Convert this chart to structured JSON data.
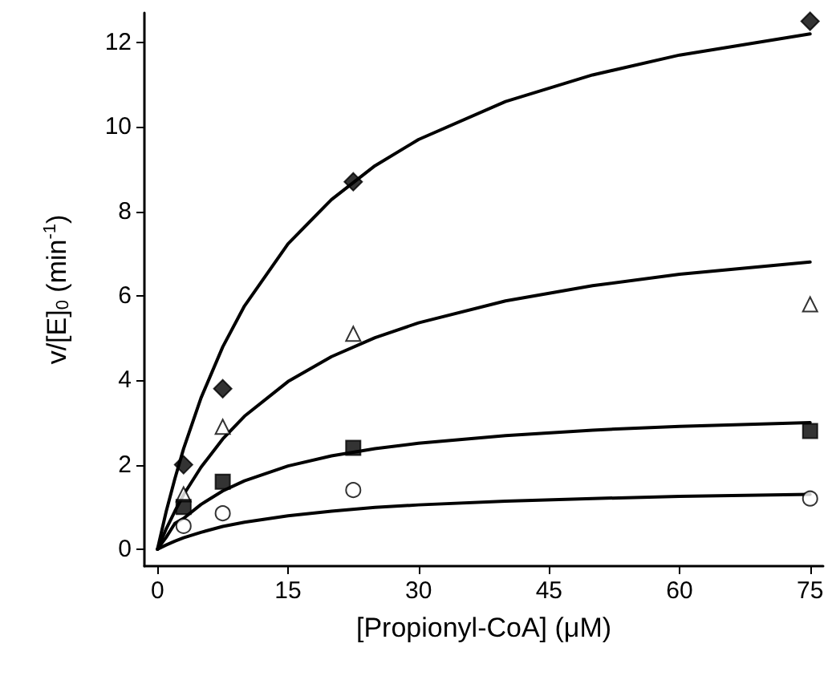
{
  "chart_data": {
    "type": "scatter",
    "xlabel": "[Propionyl-CoA] (μM)",
    "ylabel": "v/[E]$_{0}$ (min$^{-1}$)",
    "xlim": [
      -1.5,
      76.5
    ],
    "ylim": [
      -0.4,
      12.7
    ],
    "xticks": [
      0,
      15,
      30,
      45,
      60,
      75
    ],
    "yticks": [
      0,
      2,
      4,
      6,
      8,
      10,
      12
    ],
    "grid": false,
    "series": [
      {
        "color": "#000000",
        "marker": "diamond",
        "x": [
          3,
          7.5,
          22.5,
          75
        ],
        "values": [
          2.0,
          3.8,
          8.7,
          12.5
        ]
      },
      {
        "color": "#ffffff",
        "marker": "triangle",
        "x": [
          3,
          7.5,
          22.5,
          75
        ],
        "values": [
          1.3,
          2.9,
          5.1,
          5.8
        ]
      },
      {
        "color": "#000000",
        "marker": "square",
        "x": [
          3,
          7.5,
          22.5,
          75
        ],
        "values": [
          1.0,
          1.6,
          2.4,
          2.8
        ]
      },
      {
        "color": "#ffffff",
        "marker": "circle",
        "x": [
          3,
          7.5,
          22.5,
          75
        ],
        "values": [
          0.55,
          0.85,
          1.4,
          1.2
        ]
      },
      {
        "type": "line",
        "color": "#000000",
        "marker": "none",
        "line_style": "solid",
        "x": [
          0,
          1,
          2,
          3,
          5,
          7.5,
          10,
          15,
          20,
          25,
          30,
          40,
          50,
          60,
          75
        ],
        "values": [
          0,
          0.89,
          1.67,
          2.38,
          3.58,
          4.79,
          5.76,
          7.23,
          8.28,
          9.08,
          9.7,
          10.6,
          11.23,
          11.7,
          12.2
        ]
      },
      {
        "type": "line",
        "color": "#000000",
        "marker": "none",
        "line_style": "solid",
        "x": [
          0,
          1,
          2,
          3,
          5,
          7.5,
          10,
          15,
          20,
          25,
          30,
          40,
          50,
          60,
          75
        ],
        "values": [
          0,
          0.48,
          0.9,
          1.29,
          1.94,
          2.61,
          3.15,
          3.97,
          4.56,
          5.01,
          5.36,
          5.88,
          6.24,
          6.51,
          6.8
        ]
      },
      {
        "type": "line",
        "color": "#000000",
        "marker": "none",
        "line_style": "solid",
        "x": [
          0,
          1,
          2,
          3,
          5,
          7.5,
          10,
          15,
          20,
          25,
          30,
          40,
          50,
          60,
          75
        ],
        "values": [
          0,
          0.28,
          0.61,
          0.73,
          1.06,
          1.38,
          1.62,
          1.97,
          2.21,
          2.38,
          2.51,
          2.69,
          2.82,
          2.91,
          3.0
        ]
      },
      {
        "type": "line",
        "color": "#000000",
        "marker": "none",
        "line_style": "solid",
        "x": [
          0,
          1,
          2,
          3,
          5,
          7.5,
          10,
          15,
          20,
          25,
          30,
          40,
          50,
          60,
          75
        ],
        "values": [
          0,
          0.1,
          0.19,
          0.27,
          0.4,
          0.54,
          0.64,
          0.79,
          0.9,
          0.99,
          1.05,
          1.14,
          1.2,
          1.25,
          1.3
        ]
      }
    ]
  }
}
